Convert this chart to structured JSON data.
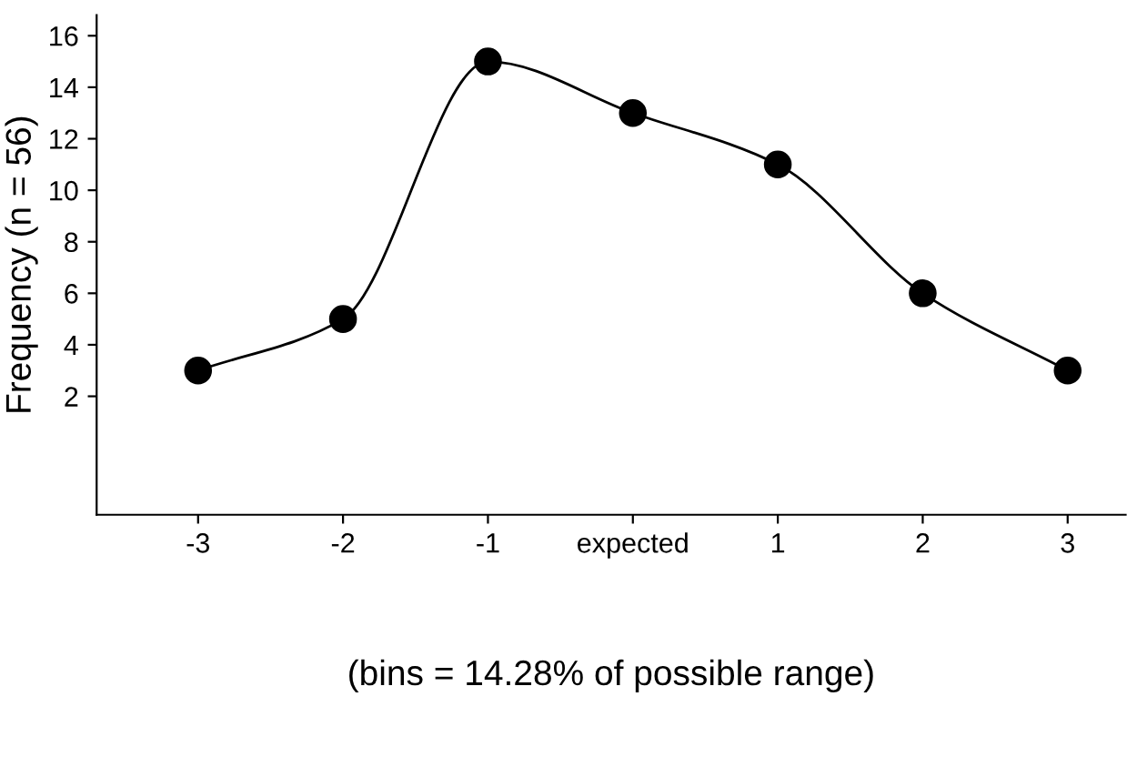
{
  "chart_data": {
    "type": "line",
    "xlabel": "(bins = 14.28% of possible range)",
    "ylabel": "Frequency (n = 56)",
    "x": [
      -3,
      -2,
      -1,
      0,
      1,
      2,
      3
    ],
    "series": [
      {
        "color": "#000000",
        "values": [
          3,
          5,
          15,
          13,
          11,
          6,
          3
        ]
      }
    ],
    "xlim": [
      -3.7,
      3.4
    ],
    "ylim": [
      -2.6,
      16.8
    ],
    "xticks": [
      -3,
      -2,
      -1,
      {
        "value": 0,
        "label": "expected"
      },
      1,
      2,
      3
    ],
    "yticks": [
      2,
      4,
      6,
      8,
      10,
      12,
      14,
      16
    ],
    "marker": "circle",
    "line_style": "solid",
    "grid": false,
    "legend": false
  }
}
